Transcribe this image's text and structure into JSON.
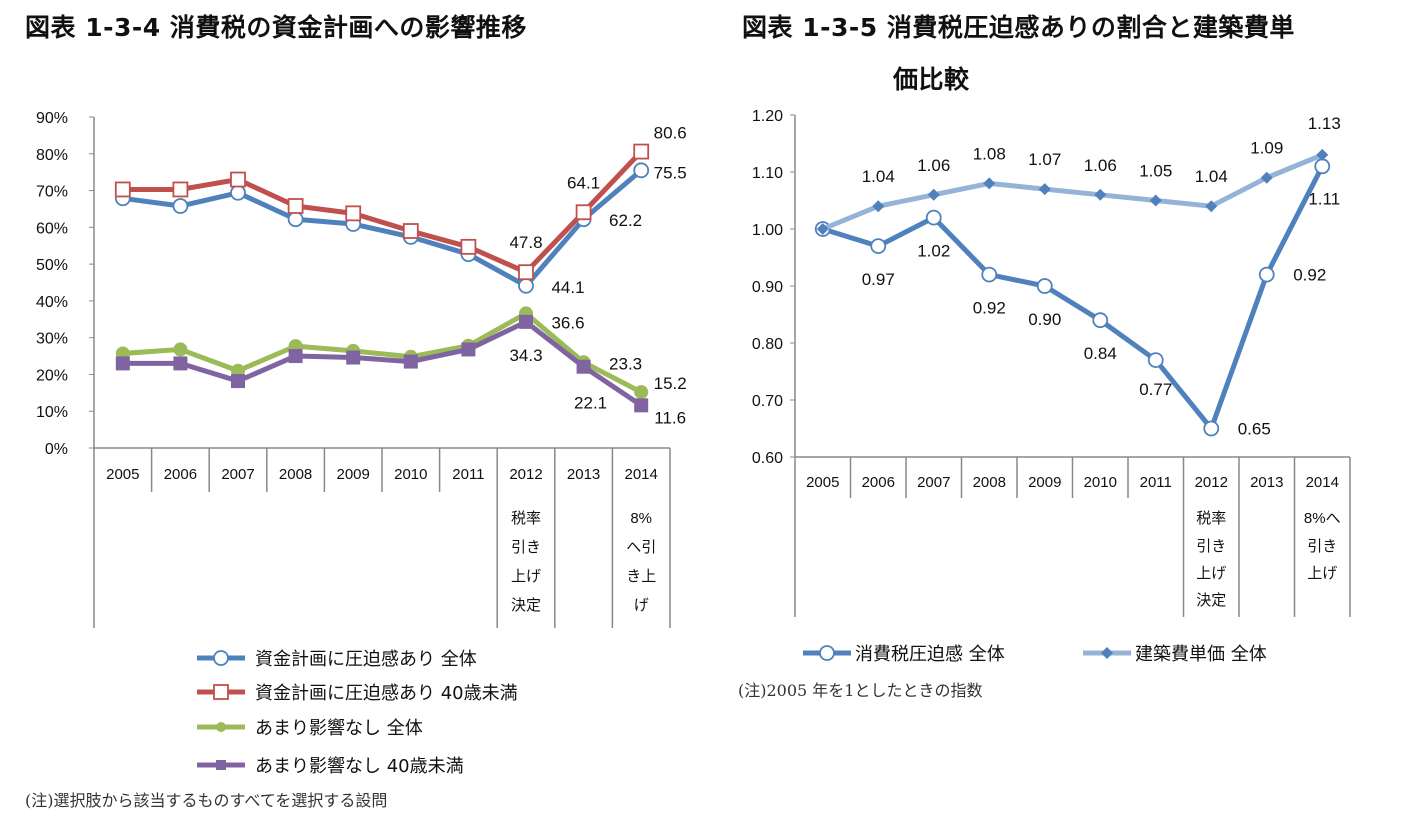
{
  "chart_data": [
    {
      "type": "line",
      "title": "図表 1-3-4 消費税の資金計画への影響推移",
      "categories": [
        "2005",
        "2006",
        "2007",
        "2008",
        "2009",
        "2010",
        "2011",
        "2012",
        "2013",
        "2014"
      ],
      "category_annotations": [
        [],
        [],
        [],
        [],
        [],
        [],
        [],
        [
          "税率",
          "引き",
          "上げ",
          "決定"
        ],
        [],
        [
          "8%",
          "へ引",
          "き上",
          "げ"
        ]
      ],
      "ylim": [
        0,
        90
      ],
      "yticks": [
        "0%",
        "10%",
        "20%",
        "30%",
        "40%",
        "50%",
        "60%",
        "70%",
        "80%",
        "90%"
      ],
      "grid": false,
      "legend": "bottom",
      "series": [
        {
          "name": "資金計画に圧迫感あり 全体",
          "color": "#4f81bd",
          "marker": "open-circle",
          "values": [
            67.9,
            65.8,
            69.4,
            62.2,
            60.9,
            57.4,
            52.7,
            44.1,
            62.2,
            75.5
          ],
          "labels": [
            null,
            null,
            null,
            null,
            null,
            null,
            null,
            "44.1",
            "62.2",
            "75.5"
          ]
        },
        {
          "name": "資金計画に圧迫感あり 40歳未満",
          "color": "#c0504d",
          "marker": "open-square",
          "values": [
            70.3,
            70.3,
            73.0,
            65.8,
            63.8,
            59.0,
            54.7,
            47.8,
            64.1,
            80.6
          ],
          "labels": [
            null,
            null,
            null,
            null,
            null,
            null,
            null,
            "47.8",
            "64.1",
            "80.6"
          ]
        },
        {
          "name": "あまり影響なし 全体",
          "color": "#9bbb59",
          "marker": "filled-circle",
          "values": [
            25.7,
            26.8,
            21.0,
            27.7,
            26.4,
            24.8,
            27.8,
            36.6,
            23.3,
            15.2
          ],
          "labels": [
            null,
            null,
            null,
            null,
            null,
            null,
            null,
            "36.6",
            "23.3",
            "15.2"
          ]
        },
        {
          "name": "あまり影響なし 40歳未満",
          "color": "#8064a2",
          "marker": "filled-square",
          "values": [
            23.0,
            23.0,
            18.2,
            25.0,
            24.6,
            23.5,
            26.8,
            34.3,
            22.1,
            11.6
          ],
          "labels": [
            null,
            null,
            null,
            null,
            null,
            null,
            null,
            "34.3",
            "22.1",
            "11.6"
          ]
        }
      ],
      "note": "(注)選択肢から該当するものすべてを選択する設問"
    },
    {
      "type": "line",
      "title_lines": [
        "図表 1-3-5 消費税圧迫感ありの割合と建築費単",
        "価比較"
      ],
      "categories": [
        "2005",
        "2006",
        "2007",
        "2008",
        "2009",
        "2010",
        "2011",
        "2012",
        "2013",
        "2014"
      ],
      "category_annotations": [
        [],
        [],
        [],
        [],
        [],
        [],
        [],
        [
          "税率",
          "引き",
          "上げ",
          "決定"
        ],
        [],
        [
          "8%へ",
          "引き",
          "上げ"
        ]
      ],
      "ylim": [
        0.6,
        1.2
      ],
      "yticks": [
        "0.60",
        "0.70",
        "0.80",
        "0.90",
        "1.00",
        "1.10",
        "1.20"
      ],
      "grid": false,
      "legend": "bottom",
      "series": [
        {
          "name": "消費税圧迫感 全体",
          "color": "#4f81bd",
          "marker": "open-circle",
          "values": [
            1.0,
            0.97,
            1.02,
            0.92,
            0.9,
            0.84,
            0.77,
            0.65,
            0.92,
            1.11
          ],
          "labels": [
            null,
            "0.97",
            "1.02",
            "0.92",
            "0.90",
            "0.84",
            "0.77",
            "0.65",
            "0.92",
            "1.11"
          ]
        },
        {
          "name": "建築費単価 全体",
          "color": "#95b3d7",
          "marker_color": "#4f81bd",
          "marker": "diamond",
          "values": [
            1.0,
            1.04,
            1.06,
            1.08,
            1.07,
            1.06,
            1.05,
            1.04,
            1.09,
            1.13
          ],
          "labels": [
            null,
            "1.04",
            "1.06",
            "1.08",
            "1.07",
            "1.06",
            "1.05",
            "1.04",
            "1.09",
            "1.13"
          ]
        }
      ],
      "note": "(注)2005 年を1としたときの指数"
    }
  ]
}
